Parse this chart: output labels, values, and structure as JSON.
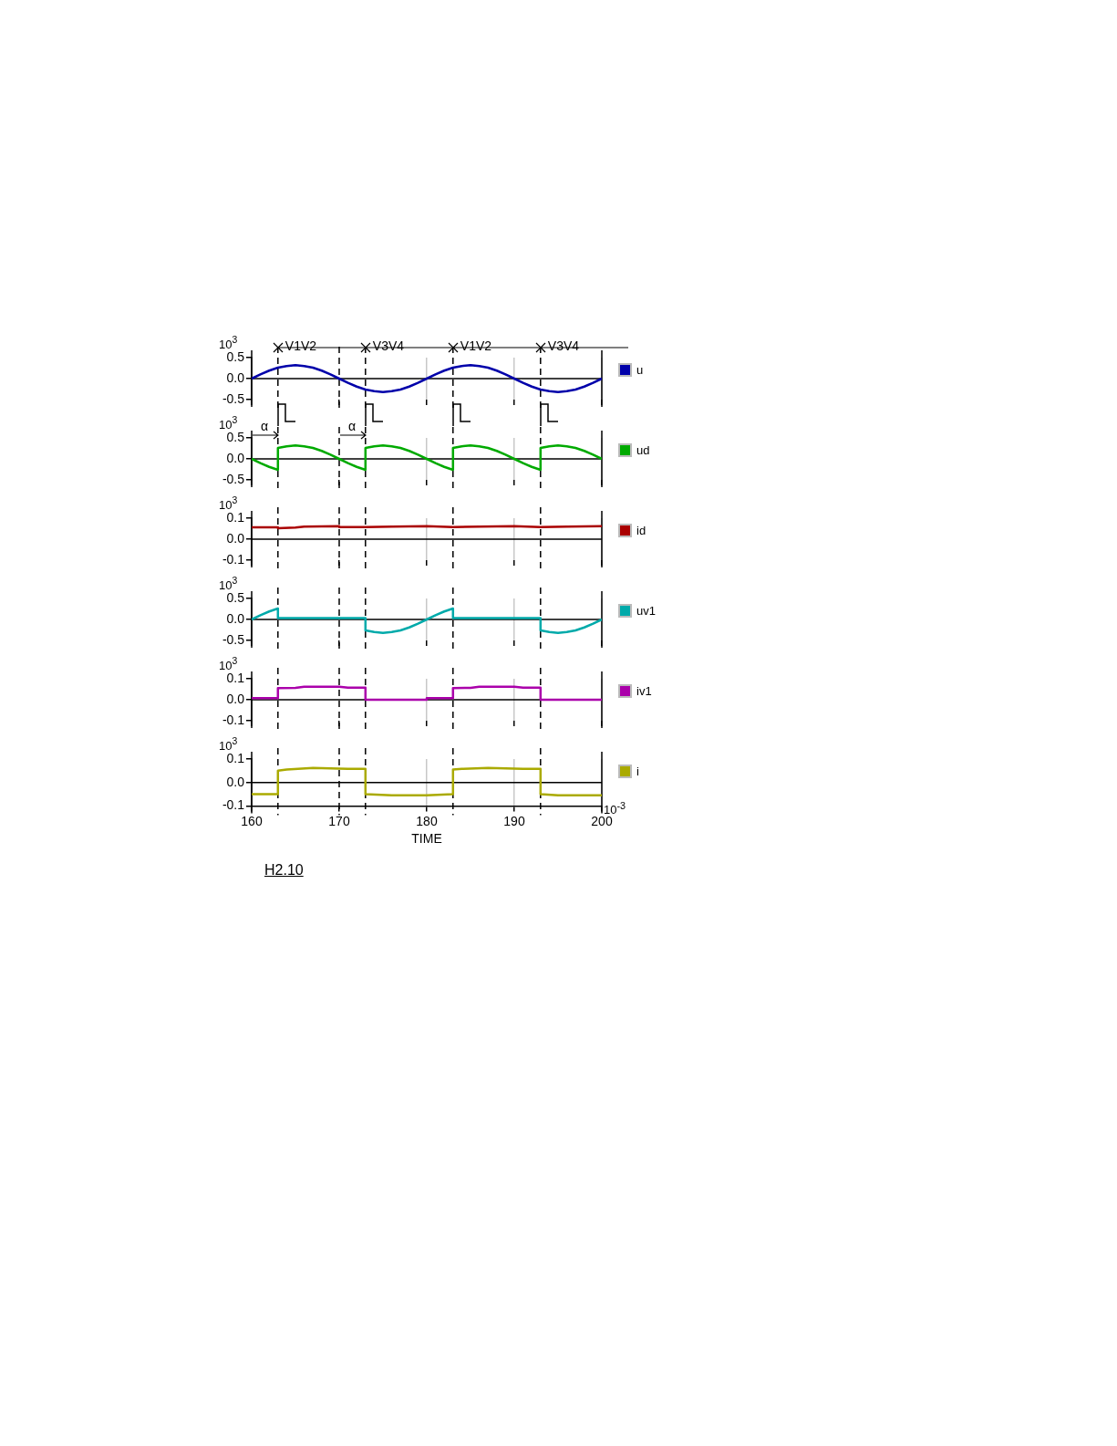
{
  "chart_data": [
    {
      "type": "line",
      "ylabel": "10$^{3}$",
      "x": [
        160,
        161,
        162,
        163,
        164,
        165,
        166,
        167,
        168,
        169,
        170,
        171,
        172,
        173,
        174,
        175,
        176,
        177,
        178,
        179,
        180,
        181,
        182,
        183,
        184,
        185,
        186,
        187,
        188,
        189,
        190,
        191,
        192,
        193,
        194,
        195,
        196,
        197,
        198,
        199,
        200
      ],
      "series": [
        {
          "name": "u",
          "color": "#0000aa",
          "values": [
            0,
            0.1,
            0.19,
            0.26,
            0.3,
            0.32,
            0.3,
            0.26,
            0.19,
            0.1,
            0,
            -0.1,
            -0.19,
            -0.26,
            -0.3,
            -0.32,
            -0.3,
            -0.26,
            -0.19,
            -0.1,
            0,
            0.1,
            0.19,
            0.26,
            0.3,
            0.32,
            0.3,
            0.26,
            0.19,
            0.1,
            0,
            -0.1,
            -0.19,
            -0.26,
            -0.3,
            -0.32,
            -0.3,
            -0.26,
            -0.19,
            -0.1,
            0
          ]
        }
      ],
      "xlim": [
        160,
        200
      ],
      "xticks": [
        160,
        170,
        180,
        190,
        200
      ],
      "ylim": [
        -0.5,
        0.5
      ],
      "yticks": [
        {
          "value": -0.5,
          "label": "-0.5"
        },
        {
          "value": 0,
          "label": "0.0"
        },
        {
          "value": 0.5,
          "label": "0.5"
        }
      ],
      "tick_labels": "y",
      "grid": "x",
      "legend": "right",
      "marker": "none",
      "line_style": "solid",
      "annotations": [
        "V1V2",
        "V3V4",
        "V1V2",
        "V3V4"
      ],
      "ref_lines": [
        {
          "axis": "y",
          "value": 0,
          "color": "#000000",
          "line_style": "solid"
        },
        {
          "axis": "x",
          "value": 163,
          "line_style": "dashed"
        },
        {
          "axis": "x",
          "value": 170,
          "line_style": "dashed"
        },
        {
          "axis": "x",
          "value": 173,
          "line_style": "dashed"
        },
        {
          "axis": "x",
          "value": 183,
          "line_style": "dashed"
        },
        {
          "axis": "x",
          "value": 193,
          "line_style": "dashed"
        }
      ]
    },
    {
      "type": "line",
      "ylabel": "10$^{3}$",
      "x": [
        160,
        161,
        162,
        163,
        163,
        164,
        165,
        166,
        167,
        168,
        169,
        170,
        171,
        172,
        173,
        173,
        174,
        175,
        176,
        177,
        178,
        179,
        180,
        181,
        182,
        183,
        183,
        184,
        185,
        186,
        187,
        188,
        189,
        190,
        191,
        192,
        193,
        193,
        194,
        195,
        196,
        197,
        198,
        199,
        200
      ],
      "series": [
        {
          "name": "ud",
          "color": "#00aa00",
          "values": [
            0,
            -0.1,
            -0.19,
            -0.26,
            0.26,
            0.3,
            0.32,
            0.3,
            0.26,
            0.19,
            0.1,
            0,
            -0.1,
            -0.19,
            -0.26,
            0.26,
            0.3,
            0.32,
            0.3,
            0.26,
            0.19,
            0.1,
            0,
            -0.1,
            -0.19,
            -0.26,
            0.26,
            0.3,
            0.32,
            0.3,
            0.26,
            0.19,
            0.1,
            0,
            -0.1,
            -0.19,
            -0.26,
            0.26,
            0.3,
            0.32,
            0.3,
            0.26,
            0.19,
            0.1,
            0
          ]
        }
      ],
      "xlim": [
        160,
        200
      ],
      "xticks": [
        160,
        170,
        180,
        190,
        200
      ],
      "ylim": [
        -0.5,
        0.5
      ],
      "yticks": [
        {
          "value": -0.5,
          "label": "-0.5"
        },
        {
          "value": 0,
          "label": "0.0"
        },
        {
          "value": 0.5,
          "label": "0.5"
        }
      ],
      "tick_labels": "y",
      "grid": "x",
      "legend": "right",
      "marker": "none",
      "line_style": "solid",
      "annotations": [
        "α",
        "α"
      ],
      "ref_lines": [
        {
          "axis": "y",
          "value": 0,
          "color": "#000000",
          "line_style": "solid"
        },
        {
          "axis": "x",
          "value": 163,
          "line_style": "dashed"
        },
        {
          "axis": "x",
          "value": 170,
          "line_style": "dashed"
        },
        {
          "axis": "x",
          "value": 173,
          "line_style": "dashed"
        },
        {
          "axis": "x",
          "value": 183,
          "line_style": "dashed"
        },
        {
          "axis": "x",
          "value": 193,
          "line_style": "dashed"
        }
      ]
    },
    {
      "type": "line",
      "ylabel": "10$^{3}$",
      "x": [
        160,
        163,
        163,
        165,
        166,
        170,
        170,
        173,
        176,
        180,
        183,
        186,
        190,
        193,
        196,
        200
      ],
      "series": [
        {
          "name": "id",
          "color": "#aa0000",
          "values": [
            0.057,
            0.057,
            0.052,
            0.055,
            0.06,
            0.062,
            0.058,
            0.058,
            0.06,
            0.062,
            0.058,
            0.06,
            0.062,
            0.058,
            0.06,
            0.062
          ]
        }
      ],
      "xlim": [
        160,
        200
      ],
      "xticks": [
        160,
        170,
        180,
        190,
        200
      ],
      "ylim": [
        -0.1,
        0.1
      ],
      "yticks": [
        {
          "value": -0.1,
          "label": "-0.1"
        },
        {
          "value": 0,
          "label": "0.0"
        },
        {
          "value": 0.1,
          "label": "0.1"
        }
      ],
      "tick_labels": "y",
      "grid": "x",
      "legend": "right",
      "marker": "none",
      "line_style": "solid",
      "ref_lines": [
        {
          "axis": "y",
          "value": 0,
          "color": "#000000",
          "line_style": "solid"
        },
        {
          "axis": "x",
          "value": 163,
          "line_style": "dashed"
        },
        {
          "axis": "x",
          "value": 170,
          "line_style": "dashed"
        },
        {
          "axis": "x",
          "value": 173,
          "line_style": "dashed"
        },
        {
          "axis": "x",
          "value": 183,
          "line_style": "dashed"
        },
        {
          "axis": "x",
          "value": 193,
          "line_style": "dashed"
        }
      ]
    },
    {
      "type": "line",
      "ylabel": "10$^{3}$",
      "x": [
        160,
        161,
        162,
        163,
        163,
        173,
        173,
        174,
        175,
        176,
        177,
        178,
        179,
        180,
        181,
        182,
        183,
        183,
        193,
        193,
        194,
        195,
        196,
        197,
        198,
        199,
        200
      ],
      "series": [
        {
          "name": "uv1",
          "color": "#00aaaa",
          "values": [
            0,
            0.1,
            0.19,
            0.26,
            0.03,
            0.03,
            -0.26,
            -0.3,
            -0.32,
            -0.3,
            -0.26,
            -0.19,
            -0.1,
            0,
            0.1,
            0.19,
            0.26,
            0.03,
            0.03,
            -0.26,
            -0.3,
            -0.32,
            -0.3,
            -0.26,
            -0.19,
            -0.1,
            0
          ]
        }
      ],
      "xlim": [
        160,
        200
      ],
      "xticks": [
        160,
        170,
        180,
        190,
        200
      ],
      "ylim": [
        -0.5,
        0.5
      ],
      "yticks": [
        {
          "value": -0.5,
          "label": "-0.5"
        },
        {
          "value": 0,
          "label": "0.0"
        },
        {
          "value": 0.5,
          "label": "0.5"
        }
      ],
      "tick_labels": "y",
      "grid": "x",
      "legend": "right",
      "marker": "none",
      "line_style": "solid",
      "ref_lines": [
        {
          "axis": "y",
          "value": 0,
          "color": "#000000",
          "line_style": "solid"
        },
        {
          "axis": "x",
          "value": 163,
          "line_style": "dashed"
        },
        {
          "axis": "x",
          "value": 170,
          "line_style": "dashed"
        },
        {
          "axis": "x",
          "value": 173,
          "line_style": "dashed"
        },
        {
          "axis": "x",
          "value": 183,
          "line_style": "dashed"
        },
        {
          "axis": "x",
          "value": 193,
          "line_style": "dashed"
        }
      ]
    },
    {
      "type": "line",
      "ylabel": "10$^{3}$",
      "x": [
        160,
        163,
        163,
        165,
        166,
        170,
        171,
        173,
        173,
        180,
        180,
        183,
        183,
        185,
        186,
        190,
        191,
        193,
        193,
        200
      ],
      "series": [
        {
          "name": "iv1",
          "color": "#aa00aa",
          "values": [
            0.008,
            0.008,
            0.055,
            0.057,
            0.062,
            0.062,
            0.058,
            0.058,
            0,
            0,
            0.008,
            0.008,
            0.055,
            0.057,
            0.062,
            0.062,
            0.058,
            0.058,
            0,
            0
          ]
        }
      ],
      "xlim": [
        160,
        200
      ],
      "xticks": [
        160,
        170,
        180,
        190,
        200
      ],
      "ylim": [
        -0.1,
        0.1
      ],
      "yticks": [
        {
          "value": -0.1,
          "label": "-0.1"
        },
        {
          "value": 0,
          "label": "0.0"
        },
        {
          "value": 0.1,
          "label": "0.1"
        }
      ],
      "tick_labels": "y",
      "grid": "x",
      "legend": "right",
      "marker": "none",
      "line_style": "solid",
      "ref_lines": [
        {
          "axis": "y",
          "value": 0,
          "color": "#000000",
          "line_style": "solid"
        },
        {
          "axis": "x",
          "value": 163,
          "line_style": "dashed"
        },
        {
          "axis": "x",
          "value": 170,
          "line_style": "dashed"
        },
        {
          "axis": "x",
          "value": 173,
          "line_style": "dashed"
        },
        {
          "axis": "x",
          "value": 183,
          "line_style": "dashed"
        },
        {
          "axis": "x",
          "value": 193,
          "line_style": "dashed"
        }
      ]
    },
    {
      "type": "line",
      "ylabel": "10$^{3}$",
      "xlabel": "TIME",
      "x": [
        160,
        163,
        163,
        164,
        167,
        171,
        173,
        173,
        176,
        180,
        183,
        183,
        184,
        187,
        191,
        193,
        193,
        195,
        200
      ],
      "series": [
        {
          "name": "i",
          "color": "#aaaa00",
          "values": [
            -0.05,
            -0.05,
            0.05,
            0.055,
            0.062,
            0.058,
            0.058,
            -0.05,
            -0.055,
            -0.055,
            -0.05,
            0.055,
            0.058,
            0.062,
            0.058,
            0.058,
            -0.05,
            -0.055,
            -0.055
          ]
        }
      ],
      "xlim": [
        160,
        200
      ],
      "xticks": [
        160,
        170,
        180,
        190,
        200
      ],
      "ylim": [
        -0.1,
        0.1
      ],
      "yticks": [
        {
          "value": -0.1,
          "label": "-0.1"
        },
        {
          "value": 0,
          "label": "0.0"
        },
        {
          "value": 0.1,
          "label": "0.1"
        }
      ],
      "grid": "x",
      "legend": "right",
      "marker": "none",
      "line_style": "solid",
      "annotations": [
        "10$^{-3}$",
        "H2.10"
      ],
      "ref_lines": [
        {
          "axis": "y",
          "value": 0,
          "color": "#000000",
          "line_style": "solid"
        },
        {
          "axis": "x",
          "value": 163,
          "line_style": "dashed"
        },
        {
          "axis": "x",
          "value": 170,
          "line_style": "dashed"
        },
        {
          "axis": "x",
          "value": 173,
          "line_style": "dashed"
        },
        {
          "axis": "x",
          "value": 183,
          "line_style": "dashed"
        },
        {
          "axis": "x",
          "value": 193,
          "line_style": "dashed"
        }
      ]
    }
  ]
}
